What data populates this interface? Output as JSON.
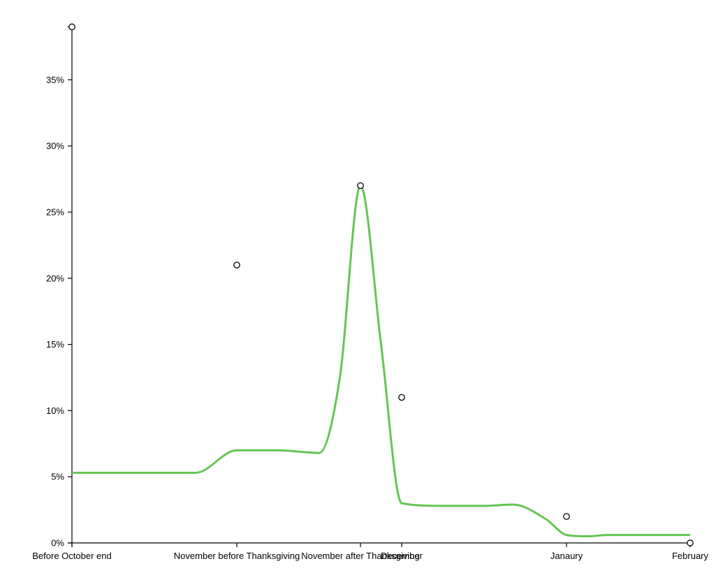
{
  "chart_data": {
    "type": "line",
    "x_categories": [
      "Before October end",
      "November before Thanksgiving",
      "November after Thanksgiving",
      "December",
      "Janaury",
      "February"
    ],
    "x_category_positions": [
      0,
      4,
      7,
      8,
      12,
      15
    ],
    "y_ticks": [
      0,
      5,
      10,
      15,
      20,
      25,
      30,
      35
    ],
    "y_tick_format": "%",
    "ylim": [
      0,
      39
    ],
    "grid": false,
    "series": [
      {
        "type": "scatter",
        "points": [
          {
            "x": "Before October end",
            "y": 39
          },
          {
            "x": "November before Thanksgiving",
            "y": 21
          },
          {
            "x": "November after Thanksgiving",
            "y": 27
          },
          {
            "x": "December",
            "y": 11
          },
          {
            "x": "Janaury",
            "y": 2
          },
          {
            "x": "February",
            "y": 0
          }
        ]
      },
      {
        "type": "line",
        "color": "#66c455",
        "x": [
          0,
          2,
          3,
          4,
          5,
          6,
          6.5,
          7,
          7.5,
          8,
          9,
          10,
          10.7,
          11.5,
          12,
          12.5,
          13,
          14,
          15
        ],
        "values": [
          5.3,
          5.3,
          5.3,
          7.0,
          7.0,
          6.8,
          12.5,
          27.0,
          15.0,
          3.0,
          2.8,
          2.8,
          2.9,
          1.8,
          0.6,
          0.5,
          0.6,
          0.6,
          0.6
        ]
      }
    ]
  }
}
